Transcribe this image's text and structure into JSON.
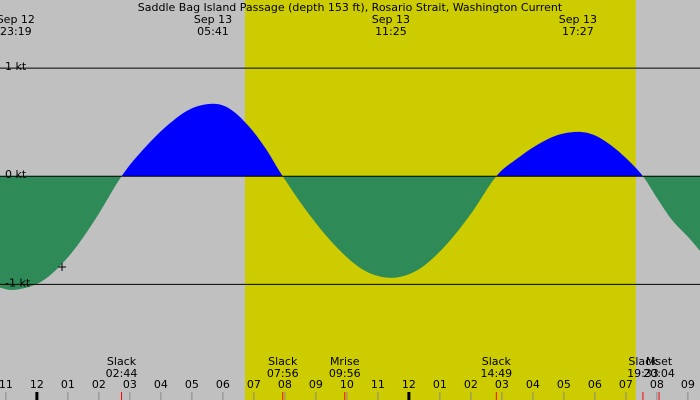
{
  "chart_data": {
    "type": "area",
    "title": "Saddle Bag Island Passage (depth 153 ft), Rosario Strait, Washington Current",
    "x": [
      22.81,
      23.32,
      24.17,
      25.03,
      25.88,
      26.73,
      27.47,
      28.21,
      28.94,
      29.68,
      30.24,
      30.81,
      31.37,
      31.93,
      32.8,
      33.68,
      34.55,
      35.42,
      36.27,
      37.12,
      37.97,
      38.82,
      39.48,
      40.14,
      40.79,
      41.45,
      41.98,
      42.5,
      43.03,
      43.55,
      44.0,
      44.5,
      45.0,
      45.39
    ],
    "values": [
      -1.03,
      -1.05,
      -0.97,
      -0.74,
      -0.4,
      0,
      0.26,
      0.47,
      0.62,
      0.67,
      0.62,
      0.47,
      0.26,
      0,
      -0.36,
      -0.66,
      -0.87,
      -0.94,
      -0.87,
      -0.66,
      -0.36,
      0,
      0.16,
      0.29,
      0.38,
      0.41,
      0.38,
      0.29,
      0.16,
      0,
      -0.2,
      -0.41,
      -0.56,
      -0.69
    ],
    "flood_color": "#0000ff",
    "ebb_color": "#2e8b57",
    "background_color": "#c0c0c0",
    "daylight": [
      30.71,
      43.32
    ],
    "daylight_color": "#cccc00",
    "xlim": [
      22.81,
      45.39
    ],
    "ylim": [
      -2.07,
      1.63
    ],
    "yticks": [
      {
        "value": 1,
        "label": "1 kt"
      },
      {
        "value": 0,
        "label": "0 kt"
      },
      {
        "value": -1,
        "label": "-1 kt"
      }
    ],
    "xticks": [
      {
        "value": 23,
        "label": "11"
      },
      {
        "value": 24,
        "label": "12"
      },
      {
        "value": 25,
        "label": "01"
      },
      {
        "value": 26,
        "label": "02"
      },
      {
        "value": 27,
        "label": "03"
      },
      {
        "value": 28,
        "label": "04"
      },
      {
        "value": 29,
        "label": "05"
      },
      {
        "value": 30,
        "label": "06"
      },
      {
        "value": 31,
        "label": "07"
      },
      {
        "value": 32,
        "label": "08"
      },
      {
        "value": 33,
        "label": "09"
      },
      {
        "value": 34,
        "label": "10"
      },
      {
        "value": 35,
        "label": "11"
      },
      {
        "value": 36,
        "label": "12"
      },
      {
        "value": 37,
        "label": "01"
      },
      {
        "value": 38,
        "label": "02"
      },
      {
        "value": 39,
        "label": "03"
      },
      {
        "value": 40,
        "label": "04"
      },
      {
        "value": 41,
        "label": "05"
      },
      {
        "value": 42,
        "label": "06"
      },
      {
        "value": 43,
        "label": "07"
      },
      {
        "value": 44,
        "label": "08"
      },
      {
        "value": 45,
        "label": "09"
      }
    ],
    "peaks": [
      {
        "date": "Sep 12",
        "time": "23:19",
        "x": 23.32
      },
      {
        "date": "Sep 13",
        "time": "05:41",
        "x": 29.68
      },
      {
        "date": "Sep 13",
        "time": "11:25",
        "x": 35.42
      },
      {
        "date": "Sep 13",
        "time": "17:27",
        "x": 41.45
      }
    ],
    "events": [
      {
        "label": "Slack",
        "time": "02:44",
        "x": 26.73
      },
      {
        "label": "Slack",
        "time": "07:56",
        "x": 31.93
      },
      {
        "label": "Mrise",
        "time": "09:56",
        "x": 33.93
      },
      {
        "label": "Slack",
        "time": "14:49",
        "x": 38.82
      },
      {
        "label": "Slack",
        "time": "19:33",
        "x": 43.55
      },
      {
        "label": "Mset",
        "time": "20:04",
        "x": 44.07
      }
    ]
  }
}
